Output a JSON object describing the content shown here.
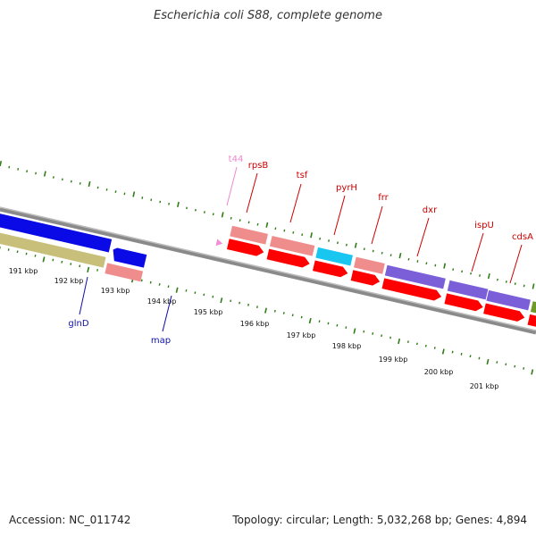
{
  "title": "Escherichia coli S88, complete genome",
  "footer": {
    "accession": "Accession: NC_011742",
    "summary": "Topology: circular; Length: 5,032,268 bp; Genes: 4,894"
  },
  "colors": {
    "backbone": "#8a8a8a",
    "tick": "#2f7d16",
    "forward_label": "#cc0000",
    "reverse_label": "#1010aa",
    "trna_label": "#ee88cc"
  },
  "map": {
    "tick_labels": [
      "191 kbp",
      "192 kbp",
      "193 kbp",
      "194 kbp",
      "195 kbp",
      "196 kbp",
      "197 kbp",
      "198 kbp",
      "199 kbp",
      "200 kbp",
      "201 kbp"
    ],
    "gene_labels_forward": [
      "t44",
      "rpsB",
      "tsf",
      "pyrH",
      "frr",
      "dxr",
      "ispU",
      "cdsA"
    ],
    "gene_labels_reverse": [
      "glnD",
      "map"
    ]
  }
}
